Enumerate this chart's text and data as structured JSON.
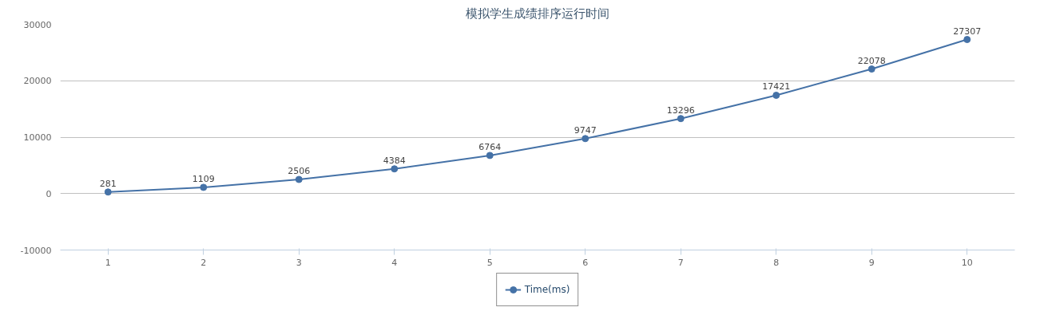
{
  "chart_data": {
    "type": "line",
    "title": "模拟学生成绩排序运行时间",
    "categories": [
      "1",
      "2",
      "3",
      "4",
      "5",
      "6",
      "7",
      "8",
      "9",
      "10"
    ],
    "series": [
      {
        "name": "Time(ms)",
        "color": "#4572a7",
        "values": [
          281,
          1109,
          2506,
          4384,
          6764,
          9747,
          13296,
          17421,
          22078,
          27307
        ]
      }
    ],
    "ylim": [
      -10000,
      30000
    ],
    "yticks": [
      -10000,
      0,
      10000,
      20000,
      30000
    ],
    "grid": "y",
    "legend": "bottom",
    "marker": "circle",
    "line_style": "solid",
    "data_labels": true
  }
}
